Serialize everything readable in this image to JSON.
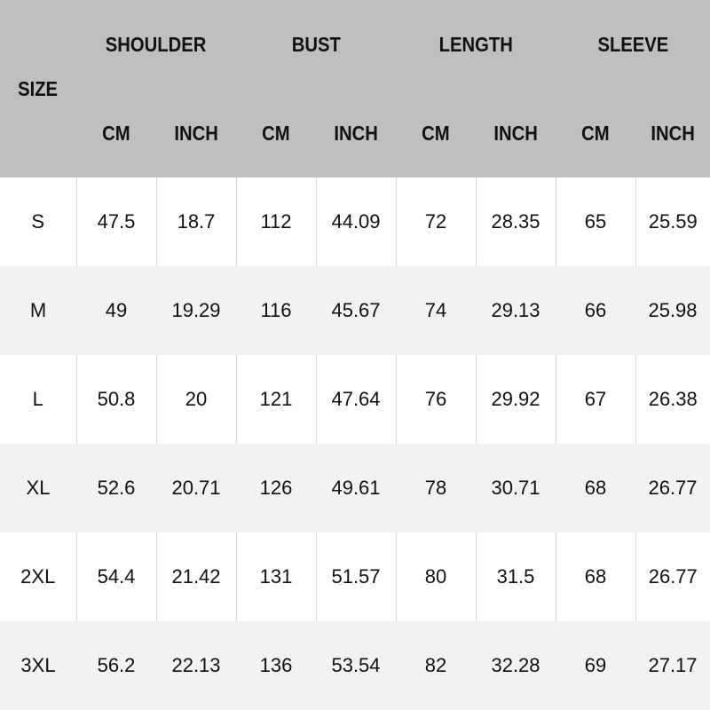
{
  "header": {
    "size": "SIZE",
    "groups": [
      "SHOULDER",
      "BUST",
      "LENGTH",
      "SLEEVE"
    ],
    "units": [
      "CM",
      "INCH",
      "CM",
      "INCH",
      "CM",
      "INCH",
      "CM",
      "INCH"
    ]
  },
  "colors": {
    "header_bg": "#bfbfbf",
    "alt_row_bg": "#f2f2f2"
  },
  "rows": [
    [
      "S",
      "47.5",
      "18.7",
      "112",
      "44.09",
      "72",
      "28.35",
      "65",
      "25.59"
    ],
    [
      "M",
      "49",
      "19.29",
      "116",
      "45.67",
      "74",
      "29.13",
      "66",
      "25.98"
    ],
    [
      "L",
      "50.8",
      "20",
      "121",
      "47.64",
      "76",
      "29.92",
      "67",
      "26.38"
    ],
    [
      "XL",
      "52.6",
      "20.71",
      "126",
      "49.61",
      "78",
      "30.71",
      "68",
      "26.77"
    ],
    [
      "2XL",
      "54.4",
      "21.42",
      "131",
      "51.57",
      "80",
      "31.5",
      "68",
      "26.77"
    ],
    [
      "3XL",
      "56.2",
      "22.13",
      "136",
      "53.54",
      "82",
      "32.28",
      "69",
      "27.17"
    ]
  ]
}
